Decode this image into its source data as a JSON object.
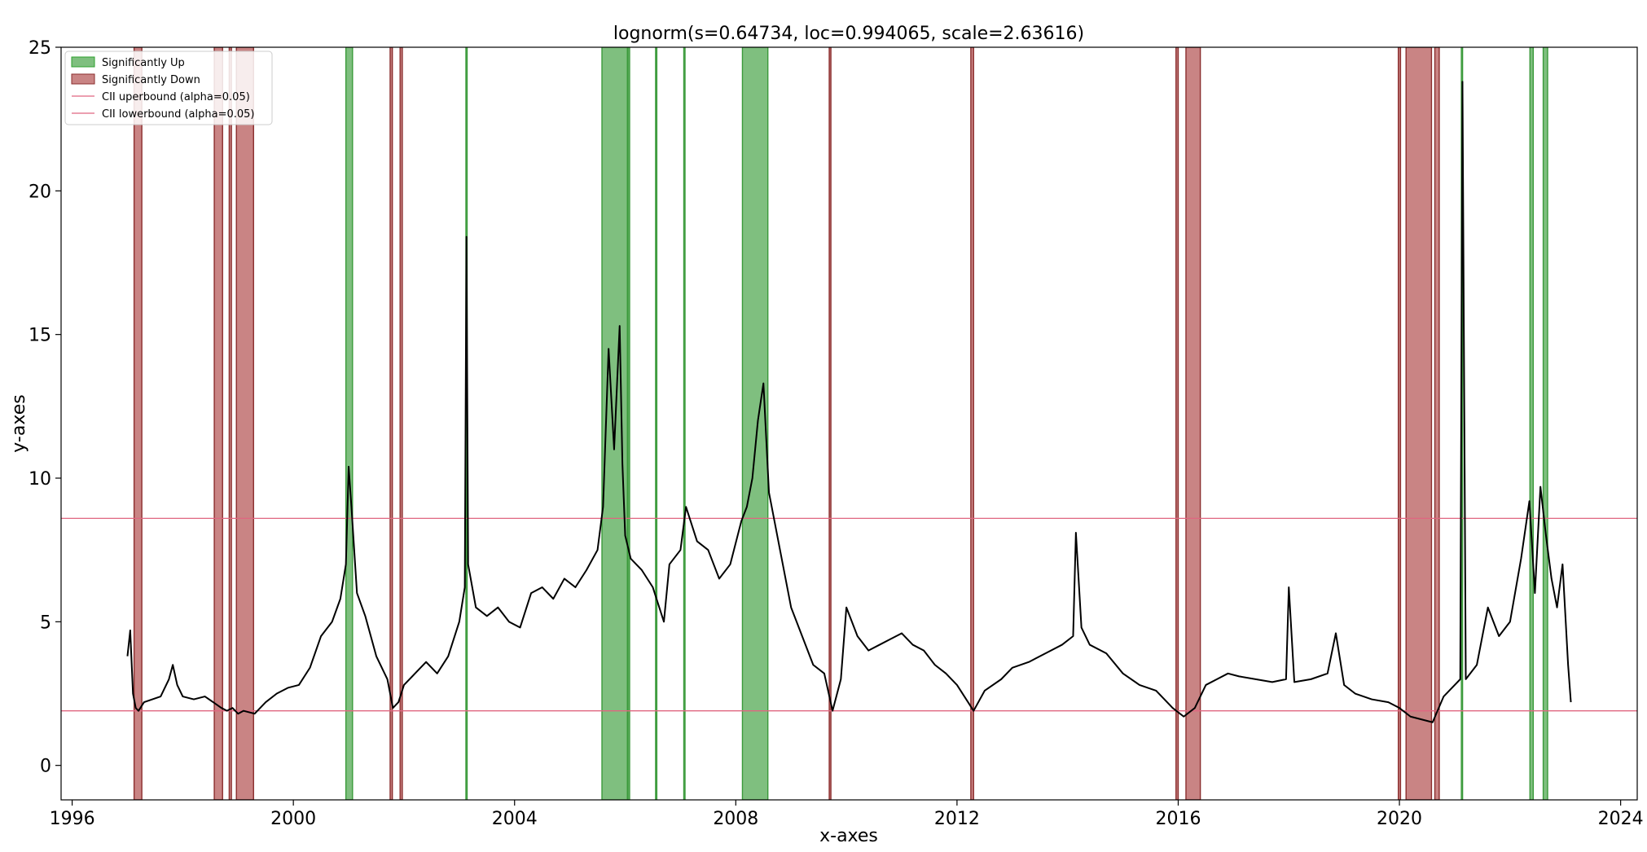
{
  "chart_data": {
    "type": "line",
    "title": "lognorm(s=0.64734, loc=0.994065, scale=2.63616)",
    "xlabel": "x-axes",
    "ylabel": "y-axes",
    "xlim": [
      1995.8,
      2024.3
    ],
    "ylim": [
      -1.2,
      25
    ],
    "x_ticks": [
      1996,
      2000,
      2004,
      2008,
      2012,
      2016,
      2020,
      2024
    ],
    "x_tick_labels": [
      "1996",
      "2000",
      "2004",
      "2008",
      "2012",
      "2016",
      "2020",
      "2024"
    ],
    "y_ticks": [
      0,
      5,
      10,
      15,
      20,
      25
    ],
    "y_tick_labels": [
      "0",
      "5",
      "10",
      "15",
      "20",
      "25"
    ],
    "grid": false,
    "legend_placement": "top-left",
    "legend": [
      {
        "label": "Significantly Up",
        "kind": "patch",
        "color": "#7fbf7f",
        "edge": "#2ca02c"
      },
      {
        "label": "Significantly Down",
        "kind": "patch",
        "color": "#c98484",
        "edge": "#8b2e2e"
      },
      {
        "label": "CII uperbound (alpha=0.05)",
        "kind": "line",
        "color": "#e06680"
      },
      {
        "label": "CII lowerbound (alpha=0.05)",
        "kind": "line",
        "color": "#e06680"
      }
    ],
    "colors": {
      "line": "#000000",
      "up_fill": "#7fbf7f",
      "up_edge": "#3a9a3a",
      "down_fill": "#c98484",
      "down_edge": "#8b2e2e",
      "bound": "#e06680"
    },
    "hlines": [
      {
        "name": "CII uperbound (alpha=0.05)",
        "y": 8.6
      },
      {
        "name": "CII lowerbound (alpha=0.05)",
        "y": 1.9
      }
    ],
    "significantly_up_spans": [
      [
        2000.95,
        2001.07
      ],
      [
        2003.12,
        2003.14
      ],
      [
        2005.58,
        2006.04
      ],
      [
        2006.05,
        2006.08
      ],
      [
        2006.55,
        2006.57
      ],
      [
        2007.06,
        2007.08
      ],
      [
        2008.12,
        2008.58
      ],
      [
        2021.12,
        2021.14
      ],
      [
        2022.36,
        2022.42
      ],
      [
        2022.6,
        2022.68
      ]
    ],
    "significantly_down_spans": [
      [
        1997.12,
        1997.26
      ],
      [
        1998.57,
        1998.72
      ],
      [
        1998.84,
        1998.88
      ],
      [
        1998.97,
        1999.28
      ],
      [
        2001.75,
        2001.79
      ],
      [
        2001.93,
        2001.97
      ],
      [
        2009.69,
        2009.72
      ],
      [
        2012.25,
        2012.3
      ],
      [
        2015.96,
        2016.0
      ],
      [
        2016.14,
        2016.4
      ],
      [
        2019.98,
        2020.02
      ],
      [
        2020.12,
        2020.58
      ],
      [
        2020.64,
        2020.72
      ]
    ],
    "series": [
      {
        "values_x": [
          1997.0,
          1997.05,
          1997.1,
          1997.15,
          1997.2,
          1997.3,
          1997.45,
          1997.6,
          1997.75,
          1997.82,
          1997.9,
          1998.0,
          1998.2,
          1998.4,
          1998.55,
          1998.7,
          1998.8,
          1998.9,
          1999.0,
          1999.1,
          1999.3,
          1999.5,
          1999.7,
          1999.9,
          2000.1,
          2000.3,
          2000.5,
          2000.7,
          2000.85,
          2000.95,
          2001.0,
          2001.05,
          2001.15,
          2001.3,
          2001.5,
          2001.7,
          2001.8,
          2001.9,
          2002.0,
          2002.2,
          2002.4,
          2002.6,
          2002.8,
          2003.0,
          2003.1,
          2003.13,
          2003.16,
          2003.3,
          2003.5,
          2003.7,
          2003.9,
          2004.1,
          2004.3,
          2004.5,
          2004.7,
          2004.9,
          2005.1,
          2005.3,
          2005.5,
          2005.6,
          2005.7,
          2005.8,
          2005.9,
          2005.95,
          2006.0,
          2006.1,
          2006.3,
          2006.5,
          2006.7,
          2006.8,
          2007.0,
          2007.1,
          2007.3,
          2007.5,
          2007.7,
          2007.9,
          2008.1,
          2008.2,
          2008.3,
          2008.4,
          2008.5,
          2008.6,
          2008.8,
          2009.0,
          2009.2,
          2009.4,
          2009.6,
          2009.75,
          2009.9,
          2010.0,
          2010.2,
          2010.4,
          2010.6,
          2010.8,
          2011.0,
          2011.2,
          2011.4,
          2011.6,
          2011.8,
          2012.0,
          2012.2,
          2012.3,
          2012.5,
          2012.8,
          2013.0,
          2013.3,
          2013.6,
          2013.9,
          2014.1,
          2014.15,
          2014.25,
          2014.4,
          2014.7,
          2015.0,
          2015.3,
          2015.6,
          2015.9,
          2016.1,
          2016.3,
          2016.5,
          2016.7,
          2016.9,
          2017.1,
          2017.4,
          2017.7,
          2017.95,
          2018.0,
          2018.1,
          2018.4,
          2018.7,
          2018.85,
          2019.0,
          2019.2,
          2019.5,
          2019.8,
          2020.0,
          2020.2,
          2020.4,
          2020.6,
          2020.8,
          2021.0,
          2021.1,
          2021.14,
          2021.2,
          2021.4,
          2021.6,
          2021.8,
          2022.0,
          2022.2,
          2022.35,
          2022.45,
          2022.55,
          2022.65,
          2022.75,
          2022.85,
          2022.95,
          2023.05,
          2023.1
        ],
        "values_y": [
          3.8,
          4.7,
          2.5,
          2.0,
          1.9,
          2.2,
          2.3,
          2.4,
          3.0,
          3.5,
          2.8,
          2.4,
          2.3,
          2.4,
          2.2,
          2.0,
          1.9,
          2.0,
          1.8,
          1.9,
          1.8,
          2.2,
          2.5,
          2.7,
          2.8,
          3.4,
          4.5,
          5.0,
          5.8,
          7.0,
          10.4,
          9.0,
          6.0,
          5.2,
          3.8,
          3.0,
          2.0,
          2.2,
          2.8,
          3.2,
          3.6,
          3.2,
          3.8,
          5.0,
          6.2,
          18.4,
          7.0,
          5.5,
          5.2,
          5.5,
          5.0,
          4.8,
          6.0,
          6.2,
          5.8,
          6.5,
          6.2,
          6.8,
          7.5,
          9.0,
          14.5,
          11.0,
          15.3,
          10.5,
          8.0,
          7.2,
          6.8,
          6.2,
          5.0,
          7.0,
          7.5,
          9.0,
          7.8,
          7.5,
          6.5,
          7.0,
          8.5,
          9.0,
          10.0,
          12.0,
          13.3,
          9.5,
          7.5,
          5.5,
          4.5,
          3.5,
          3.2,
          1.9,
          3.0,
          5.5,
          4.5,
          4.0,
          4.2,
          4.4,
          4.6,
          4.2,
          4.0,
          3.5,
          3.2,
          2.8,
          2.2,
          1.9,
          2.6,
          3.0,
          3.4,
          3.6,
          3.9,
          4.2,
          4.5,
          8.1,
          4.8,
          4.2,
          3.9,
          3.2,
          2.8,
          2.6,
          2.0,
          1.7,
          2.0,
          2.8,
          3.0,
          3.2,
          3.1,
          3.0,
          2.9,
          3.0,
          6.2,
          2.9,
          3.0,
          3.2,
          4.6,
          2.8,
          2.5,
          2.3,
          2.2,
          2.0,
          1.7,
          1.6,
          1.5,
          2.4,
          2.8,
          3.0,
          23.8,
          3.0,
          3.5,
          5.5,
          4.5,
          5.0,
          7.2,
          9.2,
          6.0,
          9.7,
          8.0,
          6.5,
          5.5,
          7.0,
          3.5,
          2.2
        ]
      }
    ]
  }
}
